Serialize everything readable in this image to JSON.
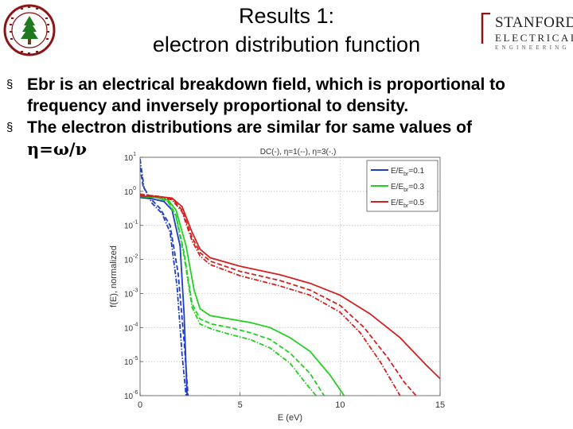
{
  "header": {
    "title_line1": "Results 1:",
    "title_line2": "electron distribution function",
    "logo_line1": "STANFORD",
    "logo_line2": "ELECTRICAL",
    "logo_line3": "ENGINEERING"
  },
  "bullets": [
    {
      "marker": "§",
      "text": "Ebr is an electrical breakdown field, which is proportional to frequency and inversely proportional to density."
    },
    {
      "marker": "§",
      "text": "The electron distributions are similar for same values of",
      "formula": "η=ω/ν"
    }
  ],
  "colors": {
    "blue": "#1f3cc8",
    "green": "#22d022",
    "red": "#d42020"
  },
  "chart_data": {
    "type": "line",
    "title": "DC(-), η=1(--), η=3(-.)",
    "xlabel": "E (eV)",
    "ylabel": "f(E), normalized",
    "xlim": [
      0,
      15
    ],
    "ylim_log10": [
      -6,
      1
    ],
    "yscale": "log",
    "grid": true,
    "legend_placement": "top-right",
    "xticks": [
      "0",
      "5",
      "10",
      "15"
    ],
    "yticks": [
      {
        "base": "10",
        "exp": "1"
      },
      {
        "base": "10",
        "exp": "0"
      },
      {
        "base": "10",
        "exp": "-1"
      },
      {
        "base": "10",
        "exp": "-2"
      },
      {
        "base": "10",
        "exp": "-3"
      },
      {
        "base": "10",
        "exp": "-4"
      },
      {
        "base": "10",
        "exp": "-5"
      },
      {
        "base": "10",
        "exp": "-6"
      }
    ],
    "legend": [
      {
        "label": "E/E",
        "sub": "br",
        "value": "=0.1",
        "color": "#1f3cc8"
      },
      {
        "label": "E/E",
        "sub": "br",
        "value": "=0.3",
        "color": "#22d022"
      },
      {
        "label": "E/E",
        "sub": "br",
        "value": "=0.5",
        "color": "#d42020"
      }
    ],
    "series": [
      {
        "group": "E/Ebr=0.1",
        "style": "solid",
        "color": "#1f3cc8",
        "points": [
          [
            0,
            -0.18
          ],
          [
            0.6,
            -0.22
          ],
          [
            1.2,
            -0.3
          ],
          [
            1.6,
            -0.55
          ],
          [
            2.0,
            -1.6
          ],
          [
            2.2,
            -3.6
          ],
          [
            2.35,
            -6
          ]
        ]
      },
      {
        "group": "E/Ebr=0.1",
        "style": "dashed",
        "color": "#1f3cc8",
        "points": [
          [
            0,
            0.7
          ],
          [
            0.15,
            0.15
          ],
          [
            0.5,
            -0.2
          ],
          [
            1.0,
            -0.5
          ],
          [
            1.5,
            -1.0
          ],
          [
            1.9,
            -2.4
          ],
          [
            2.2,
            -4.4
          ],
          [
            2.4,
            -6
          ]
        ]
      },
      {
        "group": "E/Ebr=0.1",
        "style": "dashdot",
        "color": "#1f3cc8",
        "points": [
          [
            0,
            0.95
          ],
          [
            0.2,
            0.1
          ],
          [
            0.6,
            -0.35
          ],
          [
            1.1,
            -0.65
          ],
          [
            1.5,
            -1.2
          ],
          [
            1.85,
            -2.8
          ],
          [
            2.1,
            -4.8
          ],
          [
            2.3,
            -6
          ]
        ]
      },
      {
        "group": "E/Ebr=0.3",
        "style": "solid",
        "color": "#22d022",
        "points": [
          [
            0,
            -0.15
          ],
          [
            0.8,
            -0.18
          ],
          [
            1.4,
            -0.25
          ],
          [
            1.8,
            -0.55
          ],
          [
            2.3,
            -1.6
          ],
          [
            2.7,
            -2.9
          ],
          [
            3.0,
            -3.45
          ],
          [
            3.5,
            -3.65
          ],
          [
            4.5,
            -3.75
          ],
          [
            5.5,
            -3.85
          ],
          [
            6.5,
            -4.0
          ],
          [
            7.5,
            -4.3
          ],
          [
            8.5,
            -4.7
          ],
          [
            9.5,
            -5.4
          ],
          [
            10.2,
            -6
          ]
        ]
      },
      {
        "group": "E/Ebr=0.3",
        "style": "dashed",
        "color": "#22d022",
        "points": [
          [
            0,
            -0.12
          ],
          [
            0.8,
            -0.17
          ],
          [
            1.4,
            -0.3
          ],
          [
            1.8,
            -0.7
          ],
          [
            2.2,
            -1.8
          ],
          [
            2.6,
            -3.3
          ],
          [
            3.0,
            -3.75
          ],
          [
            3.6,
            -3.9
          ],
          [
            4.5,
            -4.0
          ],
          [
            5.5,
            -4.15
          ],
          [
            6.5,
            -4.35
          ],
          [
            7.5,
            -4.75
          ],
          [
            8.5,
            -5.35
          ],
          [
            9.2,
            -6
          ]
        ]
      },
      {
        "group": "E/Ebr=0.3",
        "style": "dashdot",
        "color": "#22d022",
        "points": [
          [
            0,
            -0.1
          ],
          [
            0.8,
            -0.17
          ],
          [
            1.4,
            -0.3
          ],
          [
            1.8,
            -0.75
          ],
          [
            2.2,
            -1.9
          ],
          [
            2.6,
            -3.4
          ],
          [
            3.0,
            -3.9
          ],
          [
            3.6,
            -4.05
          ],
          [
            4.5,
            -4.2
          ],
          [
            5.5,
            -4.35
          ],
          [
            6.5,
            -4.6
          ],
          [
            7.5,
            -5.05
          ],
          [
            8.3,
            -5.65
          ],
          [
            8.8,
            -6
          ]
        ]
      },
      {
        "group": "E/Ebr=0.5",
        "style": "solid",
        "color": "#d42020",
        "points": [
          [
            0,
            -0.14
          ],
          [
            1.0,
            -0.16
          ],
          [
            1.6,
            -0.2
          ],
          [
            2.1,
            -0.45
          ],
          [
            2.6,
            -1.2
          ],
          [
            3.0,
            -1.7
          ],
          [
            3.5,
            -1.95
          ],
          [
            5,
            -2.2
          ],
          [
            7,
            -2.45
          ],
          [
            8.5,
            -2.7
          ],
          [
            10,
            -3.05
          ],
          [
            11.5,
            -3.6
          ],
          [
            13,
            -4.3
          ],
          [
            14.3,
            -5.1
          ],
          [
            15,
            -5.5
          ]
        ]
      },
      {
        "group": "E/Ebr=0.5",
        "style": "dashed",
        "color": "#d42020",
        "points": [
          [
            0,
            -0.1
          ],
          [
            1.0,
            -0.15
          ],
          [
            1.6,
            -0.22
          ],
          [
            2.1,
            -0.55
          ],
          [
            2.6,
            -1.35
          ],
          [
            3.0,
            -1.8
          ],
          [
            3.5,
            -2.05
          ],
          [
            5,
            -2.35
          ],
          [
            7,
            -2.62
          ],
          [
            8.5,
            -2.9
          ],
          [
            10,
            -3.35
          ],
          [
            11.2,
            -4.0
          ],
          [
            12.4,
            -4.9
          ],
          [
            13.2,
            -5.6
          ],
          [
            13.8,
            -6
          ]
        ]
      },
      {
        "group": "E/Ebr=0.5",
        "style": "dashdot",
        "color": "#d42020",
        "points": [
          [
            0,
            -0.08
          ],
          [
            1.0,
            -0.16
          ],
          [
            1.6,
            -0.25
          ],
          [
            2.1,
            -0.6
          ],
          [
            2.6,
            -1.45
          ],
          [
            3.0,
            -1.9
          ],
          [
            3.5,
            -2.15
          ],
          [
            5,
            -2.48
          ],
          [
            7,
            -2.78
          ],
          [
            8.5,
            -3.05
          ],
          [
            10,
            -3.55
          ],
          [
            11,
            -4.15
          ],
          [
            12,
            -5.0
          ],
          [
            12.6,
            -5.6
          ],
          [
            13.0,
            -6
          ]
        ]
      }
    ]
  }
}
